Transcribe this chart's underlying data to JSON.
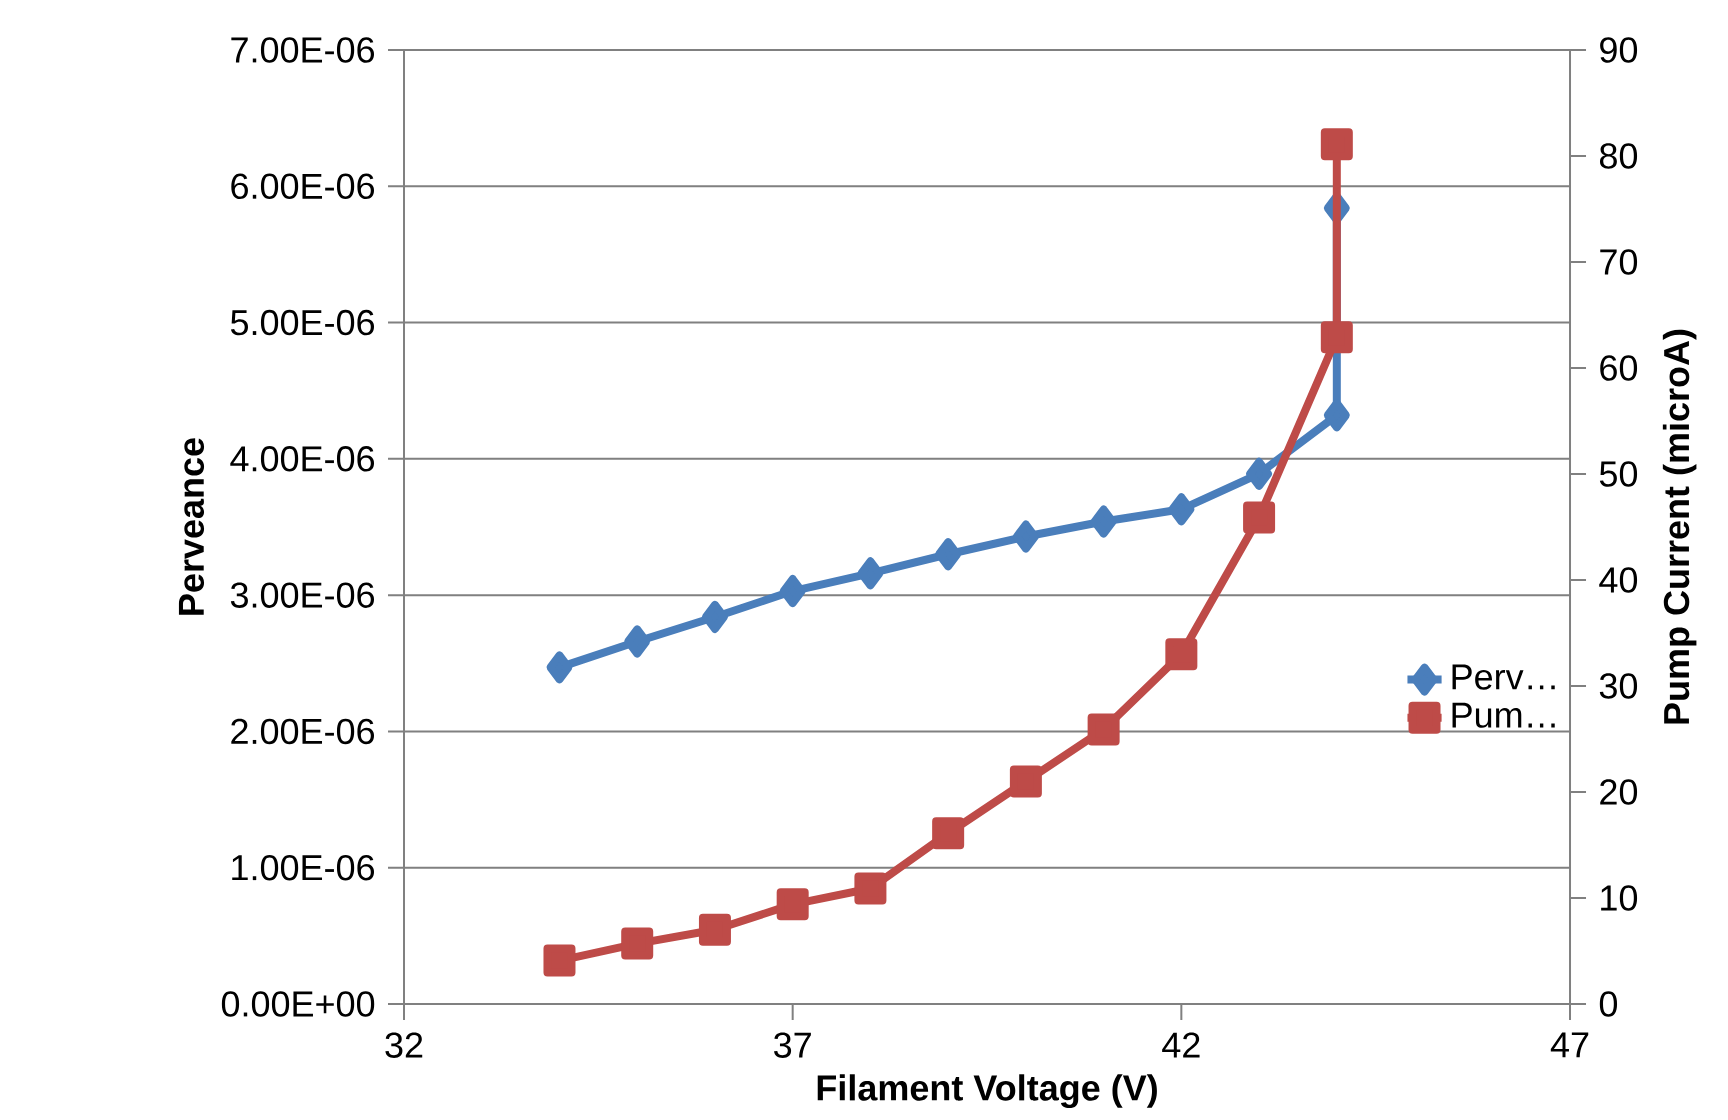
{
  "chart_data": {
    "type": "line",
    "xlabel": "Filament Voltage (V)",
    "ylabel": "Perveance",
    "y2label": "Pump Current (microA)",
    "series": [
      {
        "name": "Perv…",
        "color": "#4a7ebb",
        "marker": "diamond",
        "x": [
          34,
          35,
          36,
          37,
          38,
          39,
          40,
          41,
          42,
          43,
          44,
          44
        ],
        "values": [
          2.47e-06,
          2.66e-06,
          2.84e-06,
          3.03e-06,
          3.16e-06,
          3.3e-06,
          3.43e-06,
          3.54e-06,
          3.63e-06,
          3.89e-06,
          4.32e-06,
          5.84e-06
        ]
      },
      {
        "name": "Pum…",
        "color": "#be4b48",
        "marker": "square",
        "axis": "y2",
        "x": [
          34,
          35,
          36,
          37,
          38,
          39,
          40,
          41,
          42,
          43,
          44,
          44
        ],
        "values": [
          4.1,
          5.7,
          7.0,
          9.4,
          10.9,
          16.1,
          21.0,
          25.9,
          33.0,
          45.9,
          62.9,
          81.1
        ]
      }
    ],
    "xlim": [
      32,
      47
    ],
    "xticks": [
      32,
      37,
      42,
      47
    ],
    "ylim": [
      0,
      7e-06
    ],
    "yticks": [
      {
        "value": 0,
        "label": "0.00E+00"
      },
      {
        "value": 1e-06,
        "label": "1.00E-06"
      },
      {
        "value": 2e-06,
        "label": "2.00E-06"
      },
      {
        "value": 3e-06,
        "label": "3.00E-06"
      },
      {
        "value": 4e-06,
        "label": "4.00E-06"
      },
      {
        "value": 5e-06,
        "label": "5.00E-06"
      },
      {
        "value": 6e-06,
        "label": "6.00E-06"
      },
      {
        "value": 7e-06,
        "label": "7.00E-06"
      }
    ],
    "y2lim": [
      0,
      90
    ],
    "y2ticks": [
      0,
      10,
      20,
      30,
      40,
      50,
      60,
      70,
      80,
      90
    ],
    "grid": "y",
    "legend": "right",
    "line_style": "solid"
  }
}
